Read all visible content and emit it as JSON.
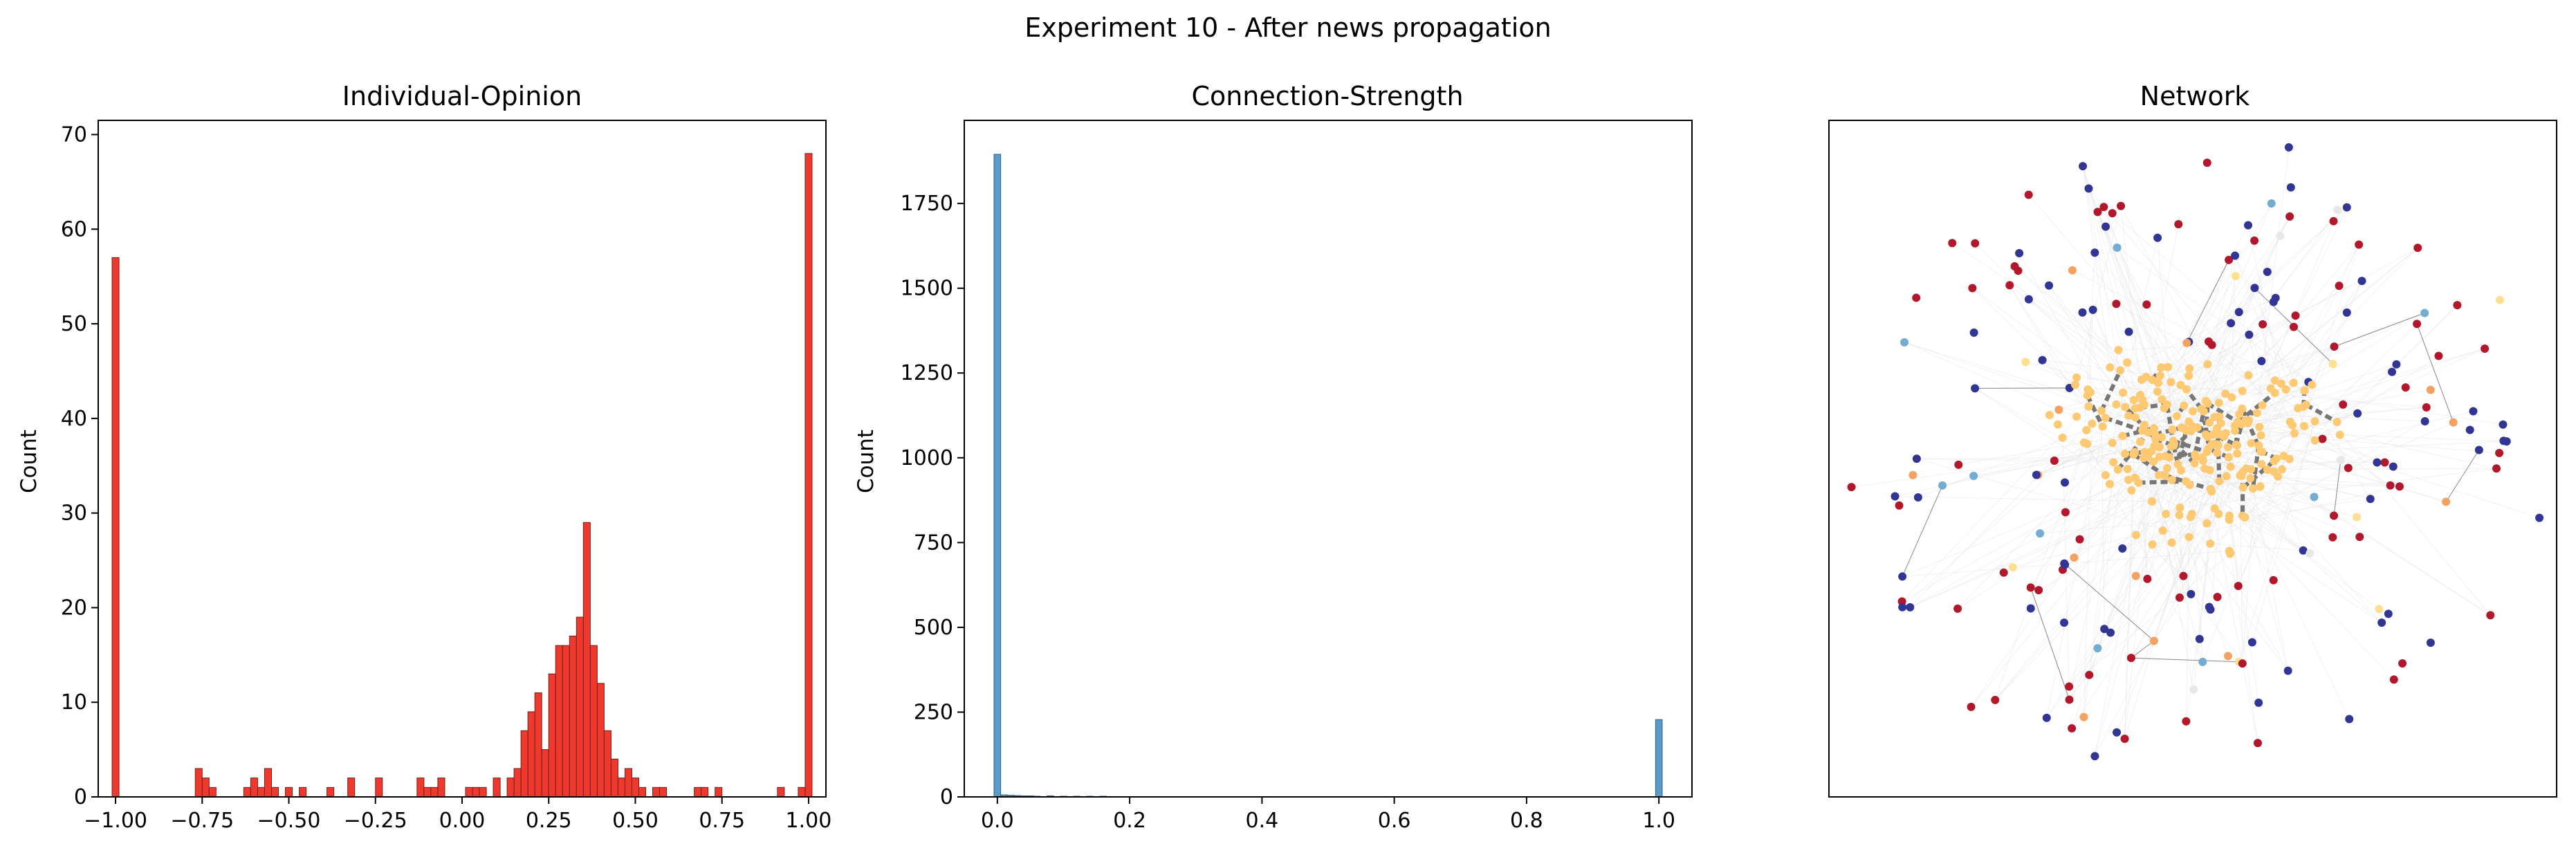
{
  "figure": {
    "suptitle": "Experiment 10 - After news propagation"
  },
  "chart_data": [
    {
      "type": "bar",
      "kind": "histogram",
      "title": "Individual-Opinion",
      "xlabel": "",
      "ylabel": "Count",
      "xlim": [
        -1.05,
        1.05
      ],
      "ylim": [
        0,
        71.5
      ],
      "bin_width": 0.02,
      "x_ticks": [
        -1.0,
        -0.75,
        -0.5,
        -0.25,
        0.0,
        0.25,
        0.5,
        0.75,
        1.0
      ],
      "x_tick_labels": [
        "−1.00",
        "−0.75",
        "−0.50",
        "−0.25",
        "0.00",
        "0.25",
        "0.50",
        "0.75",
        "1.00"
      ],
      "y_ticks": [
        0,
        10,
        20,
        30,
        40,
        50,
        60,
        70
      ],
      "y_tick_labels": [
        "0",
        "10",
        "20",
        "30",
        "40",
        "50",
        "60",
        "70"
      ],
      "color": "#ee3a2e",
      "edge_color": "#7a1d16",
      "bins": [
        {
          "x": -1.0,
          "count": 57
        },
        {
          "x": -0.76,
          "count": 3
        },
        {
          "x": -0.74,
          "count": 2
        },
        {
          "x": -0.72,
          "count": 1
        },
        {
          "x": -0.62,
          "count": 1
        },
        {
          "x": -0.6,
          "count": 2
        },
        {
          "x": -0.58,
          "count": 1
        },
        {
          "x": -0.56,
          "count": 3
        },
        {
          "x": -0.54,
          "count": 1
        },
        {
          "x": -0.5,
          "count": 1
        },
        {
          "x": -0.46,
          "count": 1
        },
        {
          "x": -0.38,
          "count": 1
        },
        {
          "x": -0.32,
          "count": 2
        },
        {
          "x": -0.24,
          "count": 2
        },
        {
          "x": -0.12,
          "count": 2
        },
        {
          "x": -0.1,
          "count": 1
        },
        {
          "x": -0.08,
          "count": 1
        },
        {
          "x": -0.06,
          "count": 2
        },
        {
          "x": 0.02,
          "count": 1
        },
        {
          "x": 0.04,
          "count": 1
        },
        {
          "x": 0.06,
          "count": 1
        },
        {
          "x": 0.1,
          "count": 2
        },
        {
          "x": 0.14,
          "count": 2
        },
        {
          "x": 0.16,
          "count": 3
        },
        {
          "x": 0.18,
          "count": 7
        },
        {
          "x": 0.2,
          "count": 9
        },
        {
          "x": 0.22,
          "count": 11
        },
        {
          "x": 0.24,
          "count": 5
        },
        {
          "x": 0.26,
          "count": 13
        },
        {
          "x": 0.28,
          "count": 16
        },
        {
          "x": 0.3,
          "count": 16
        },
        {
          "x": 0.32,
          "count": 17
        },
        {
          "x": 0.34,
          "count": 19
        },
        {
          "x": 0.36,
          "count": 29
        },
        {
          "x": 0.38,
          "count": 16
        },
        {
          "x": 0.4,
          "count": 12
        },
        {
          "x": 0.42,
          "count": 7
        },
        {
          "x": 0.44,
          "count": 4
        },
        {
          "x": 0.46,
          "count": 2
        },
        {
          "x": 0.48,
          "count": 3
        },
        {
          "x": 0.5,
          "count": 2
        },
        {
          "x": 0.52,
          "count": 1
        },
        {
          "x": 0.56,
          "count": 1
        },
        {
          "x": 0.58,
          "count": 1
        },
        {
          "x": 0.68,
          "count": 1
        },
        {
          "x": 0.7,
          "count": 1
        },
        {
          "x": 0.74,
          "count": 1
        },
        {
          "x": 0.92,
          "count": 1
        },
        {
          "x": 0.98,
          "count": 1
        },
        {
          "x": 1.0,
          "count": 68
        }
      ]
    },
    {
      "type": "bar",
      "kind": "histogram",
      "title": "Connection-Strength",
      "xlabel": "",
      "ylabel": "Count",
      "xlim": [
        -0.05,
        1.05
      ],
      "ylim": [
        0,
        1995
      ],
      "bin_width": 0.01,
      "x_ticks": [
        0.0,
        0.2,
        0.4,
        0.6,
        0.8,
        1.0
      ],
      "x_tick_labels": [
        "0.0",
        "0.2",
        "0.4",
        "0.6",
        "0.8",
        "1.0"
      ],
      "y_ticks": [
        0,
        250,
        500,
        750,
        1000,
        1250,
        1500,
        1750
      ],
      "y_tick_labels": [
        "0",
        "250",
        "500",
        "750",
        "1000",
        "1250",
        "1500",
        "1750"
      ],
      "color": "#5b9bc9",
      "edge_color": "#2e5f85",
      "bins": [
        {
          "x": 0.0,
          "count": 1895
        },
        {
          "x": 0.01,
          "count": 6
        },
        {
          "x": 0.02,
          "count": 5
        },
        {
          "x": 0.03,
          "count": 4
        },
        {
          "x": 0.04,
          "count": 3
        },
        {
          "x": 0.05,
          "count": 3
        },
        {
          "x": 0.06,
          "count": 2
        },
        {
          "x": 0.08,
          "count": 3
        },
        {
          "x": 0.1,
          "count": 2
        },
        {
          "x": 0.12,
          "count": 2
        },
        {
          "x": 0.14,
          "count": 2
        },
        {
          "x": 0.16,
          "count": 2
        },
        {
          "x": 0.18,
          "count": 1
        },
        {
          "x": 0.27,
          "count": 1
        },
        {
          "x": 1.0,
          "count": 228
        }
      ]
    },
    {
      "type": "network",
      "title": "Network",
      "frame_ticks": false,
      "node_colors": [
        "#b2182b",
        "#313695",
        "#fdc972",
        "#74add1",
        "#f4a262",
        "#fee090",
        "#e8e8e8"
      ]
    }
  ]
}
